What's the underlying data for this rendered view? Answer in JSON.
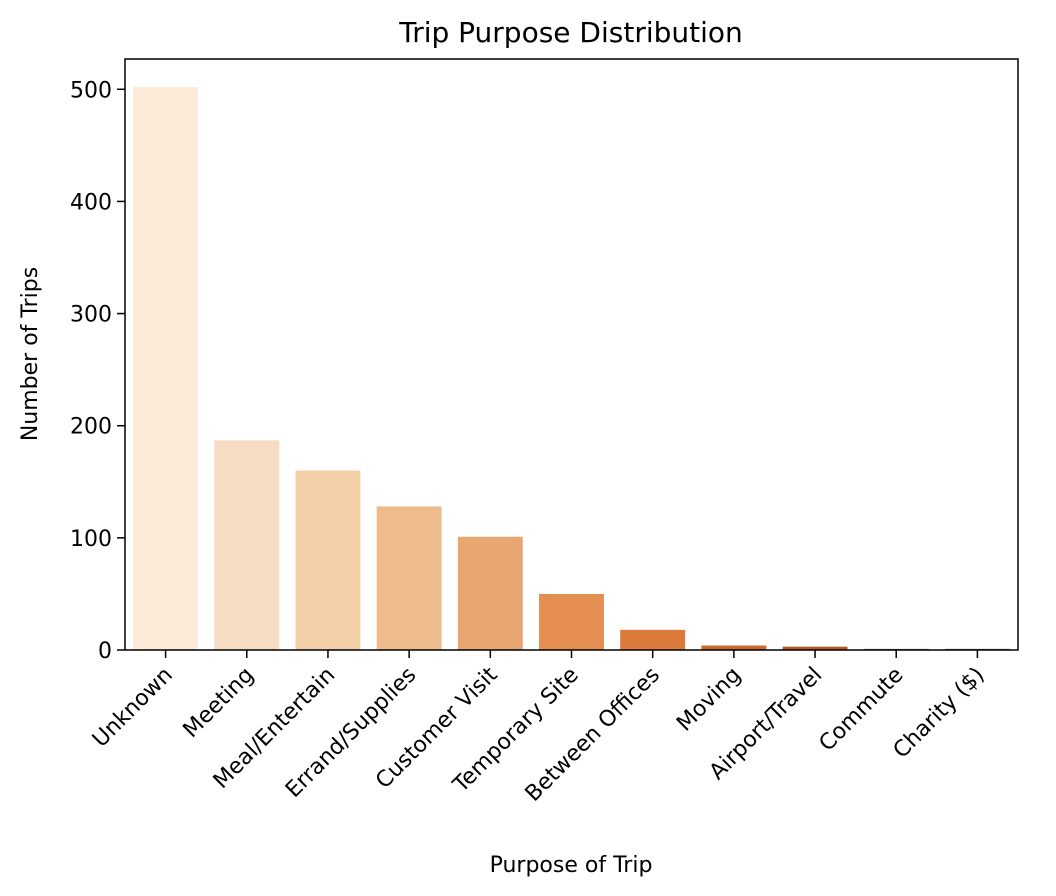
{
  "chart_data": {
    "type": "bar",
    "title": "Trip Purpose Distribution",
    "xlabel": "Purpose of Trip",
    "ylabel": "Number of Trips",
    "categories": [
      "Unknown",
      "Meeting",
      "Meal/Entertain",
      "Errand/Supplies",
      "Customer Visit",
      "Temporary Site",
      "Between Offices",
      "Moving",
      "Airport/Travel",
      "Commute",
      "Charity ($)"
    ],
    "values": [
      502,
      187,
      160,
      128,
      101,
      50,
      18,
      4,
      3,
      1,
      1
    ],
    "colors": [
      "#fdebda",
      "#f7dcc4",
      "#f3cfa8",
      "#eebb8c",
      "#e9a670",
      "#e48f51",
      "#db7a3a",
      "#c9692f",
      "#ba5a24",
      "#a84f1f",
      "#9a461b"
    ],
    "yticks": [
      0,
      100,
      200,
      300,
      400,
      500
    ],
    "ylim": [
      0,
      527
    ],
    "grid": false,
    "legend": "none"
  }
}
